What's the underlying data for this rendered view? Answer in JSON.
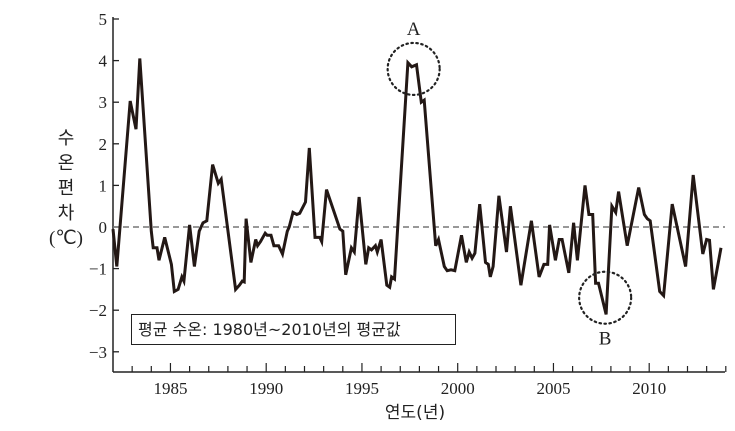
{
  "chart_data": {
    "type": "line",
    "title": "",
    "xlabel": "연도(년)",
    "ylabel_lines": [
      "수",
      "온",
      "편",
      "차"
    ],
    "ylabel_unit": "(℃)",
    "xlim": [
      1982,
      2014
    ],
    "ylim": [
      -3.5,
      5
    ],
    "x_ticks": [
      1985,
      1990,
      1995,
      2000,
      2005,
      2010
    ],
    "x_tick_labels": [
      "1985",
      "1990",
      "1995",
      "2000",
      "2005",
      "2010"
    ],
    "y_ticks": [
      -3,
      -2,
      -1,
      0,
      1,
      2,
      3,
      4,
      5
    ],
    "y_tick_labels": [
      "−3",
      "−2",
      "−1",
      "0",
      "1",
      "2",
      "3",
      "4",
      "5"
    ],
    "reference_line": {
      "y": 0,
      "style": "dashed"
    },
    "grid": false,
    "legend_box": "평균 수온: 1980년~2010년의 평균값",
    "annotations": [
      {
        "label": "A",
        "x": 1997.7,
        "y": 3.8,
        "style": "dotted-circle"
      },
      {
        "label": "B",
        "x": 2007.7,
        "y": -1.7,
        "style": "dotted-circle"
      }
    ],
    "line_color": "#231815",
    "series": [
      {
        "x": [
          1982.0,
          1982.2,
          1982.9,
          1983.2,
          1983.4,
          1984.0,
          1984.1,
          1984.3,
          1984.4,
          1984.7,
          1985.0,
          1985.05,
          1985.2,
          1985.4,
          1985.6,
          1985.7,
          1986.0,
          1986.25,
          1986.5,
          1986.7,
          1986.9,
          1987.2,
          1987.5,
          1987.65,
          1988.4,
          1988.6,
          1988.75,
          1988.85,
          1988.95,
          1989.2,
          1989.45,
          1989.55,
          1989.7,
          1989.95,
          1990.05,
          1990.25,
          1990.4,
          1990.65,
          1990.85,
          1991.1,
          1991.2,
          1991.4,
          1991.6,
          1991.75,
          1992.05,
          1992.25,
          1992.55,
          1992.8,
          1992.9,
          1993.15,
          1993.85,
          1994.0,
          1994.15,
          1994.45,
          1994.6,
          1994.85,
          1995.2,
          1995.35,
          1995.5,
          1995.7,
          1995.8,
          1996.0,
          1996.3,
          1996.45,
          1996.55,
          1996.7,
          1997.4,
          1997.6,
          1997.85,
          1998.1,
          1998.25,
          1998.85,
          1999.0,
          1999.3,
          1999.45,
          1999.65,
          1999.85,
          2000.2,
          2000.45,
          2000.6,
          2000.75,
          2000.9,
          2001.15,
          2001.45,
          2001.6,
          2001.7,
          2001.85,
          2002.15,
          2002.55,
          2002.75,
          2003.3,
          2003.85,
          2004.25,
          2004.5,
          2004.7,
          2004.8,
          2005.1,
          2005.3,
          2005.45,
          2005.8,
          2006.05,
          2006.25,
          2006.65,
          2006.85,
          2007.05,
          2007.2,
          2007.35,
          2007.75,
          2008.05,
          2008.25,
          2008.4,
          2008.85,
          2009.45,
          2009.75,
          2009.9,
          2010.05,
          2010.55,
          2010.75,
          2011.2,
          2011.9,
          2012.3,
          2012.8,
          2013.0,
          2013.15,
          2013.35,
          2013.75
        ],
        "y": [
          -0.05,
          -0.95,
          3.03,
          2.35,
          4.05,
          -0.1,
          -0.5,
          -0.5,
          -0.8,
          -0.25,
          -0.8,
          -0.9,
          -1.55,
          -1.5,
          -1.2,
          -1.3,
          0.05,
          -0.95,
          -0.1,
          0.1,
          0.15,
          1.5,
          1.05,
          1.15,
          -1.5,
          -1.4,
          -1.3,
          -1.32,
          0.2,
          -0.85,
          -0.3,
          -0.45,
          -0.35,
          -0.15,
          -0.2,
          -0.2,
          -0.45,
          -0.45,
          -0.65,
          -0.1,
          0.0,
          0.35,
          0.3,
          0.33,
          0.6,
          1.9,
          -0.25,
          -0.25,
          -0.35,
          0.9,
          -0.05,
          -0.1,
          -1.15,
          -0.5,
          -0.6,
          0.72,
          -0.9,
          -0.5,
          -0.55,
          -0.45,
          -0.6,
          -0.3,
          -1.4,
          -1.45,
          -1.2,
          -1.25,
          3.95,
          3.85,
          3.9,
          3.0,
          3.05,
          -0.45,
          -0.3,
          -0.95,
          -1.05,
          -1.03,
          -1.05,
          -0.2,
          -0.85,
          -0.6,
          -0.75,
          -0.63,
          0.55,
          -0.85,
          -0.9,
          -1.2,
          -0.95,
          0.75,
          -0.6,
          0.5,
          -1.4,
          0.15,
          -1.2,
          -0.9,
          -0.9,
          0.05,
          -0.8,
          -0.3,
          -0.3,
          -1.1,
          0.1,
          -0.8,
          1.0,
          0.3,
          0.3,
          -1.35,
          -1.35,
          -2.1,
          0.5,
          0.35,
          0.85,
          -0.45,
          0.95,
          0.3,
          0.2,
          0.15,
          -1.55,
          -1.65,
          0.55,
          -0.95,
          1.25,
          -0.65,
          -0.3,
          -0.32,
          -1.5,
          -0.5
        ]
      }
    ]
  }
}
